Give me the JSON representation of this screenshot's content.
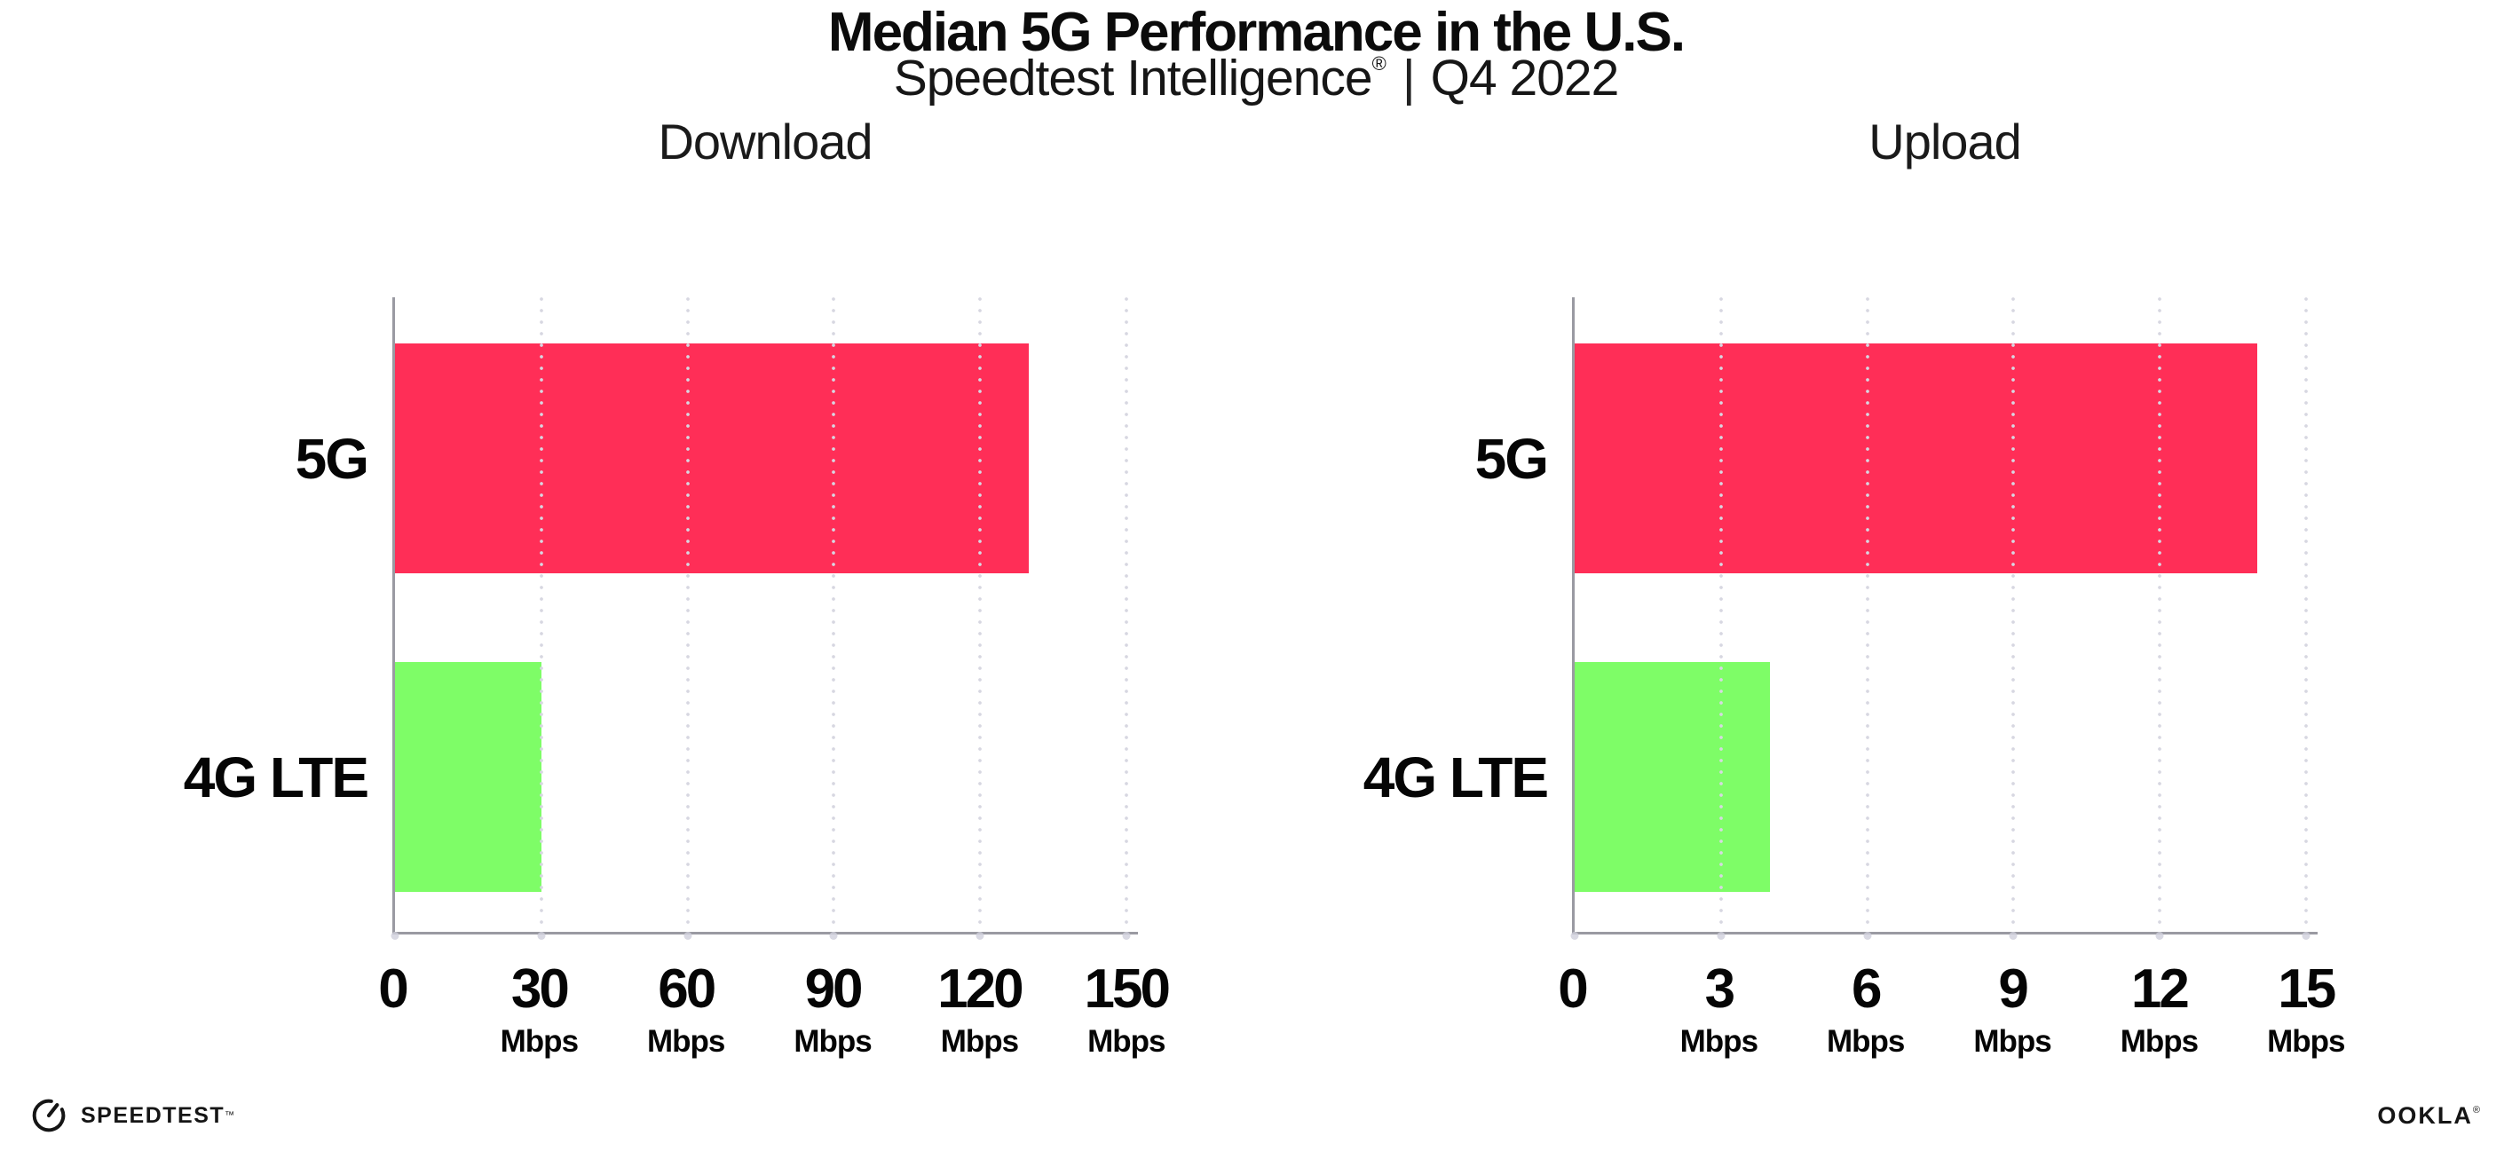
{
  "header": {
    "title": "Median 5G Performance in the U.S.",
    "subtitle_brand": "Speedtest Intelligence",
    "subtitle_reg": "®",
    "subtitle_sep": "|",
    "subtitle_period": "Q4 2022"
  },
  "chart_data": [
    {
      "type": "bar",
      "orientation": "horizontal",
      "title": "Download",
      "categories": [
        "5G",
        "4G LTE"
      ],
      "values": [
        130,
        30
      ],
      "unit": "Mbps",
      "xticks": [
        0,
        30,
        60,
        90,
        120,
        150
      ],
      "xlim": [
        0,
        152.4
      ],
      "bar_colors": [
        "#FF2E57",
        "#7EFD67"
      ],
      "grid": "vertical-dotted",
      "legend": "none"
    },
    {
      "type": "bar",
      "orientation": "horizontal",
      "title": "Upload",
      "categories": [
        "5G",
        "4G LTE"
      ],
      "values": [
        14,
        4
      ],
      "unit": "Mbps",
      "xticks": [
        0,
        3,
        6,
        9,
        12,
        15
      ],
      "xlim": [
        0,
        15.24
      ],
      "bar_colors": [
        "#FF2E57",
        "#7EFD67"
      ],
      "grid": "vertical-dotted",
      "legend": "none"
    }
  ],
  "footer": {
    "speedtest_wordmark": "SPEEDTEST",
    "speedtest_mark": "™",
    "ookla_wordmark": "OOKLA",
    "ookla_mark": "®"
  },
  "colors": {
    "bar_5g": "#FF2E57",
    "bar_4g_lte": "#7EFD67",
    "axis": "#9A9AA2",
    "gridline_dot": "#D7D7E1",
    "text": "#111111",
    "background": "#FFFFFF"
  }
}
